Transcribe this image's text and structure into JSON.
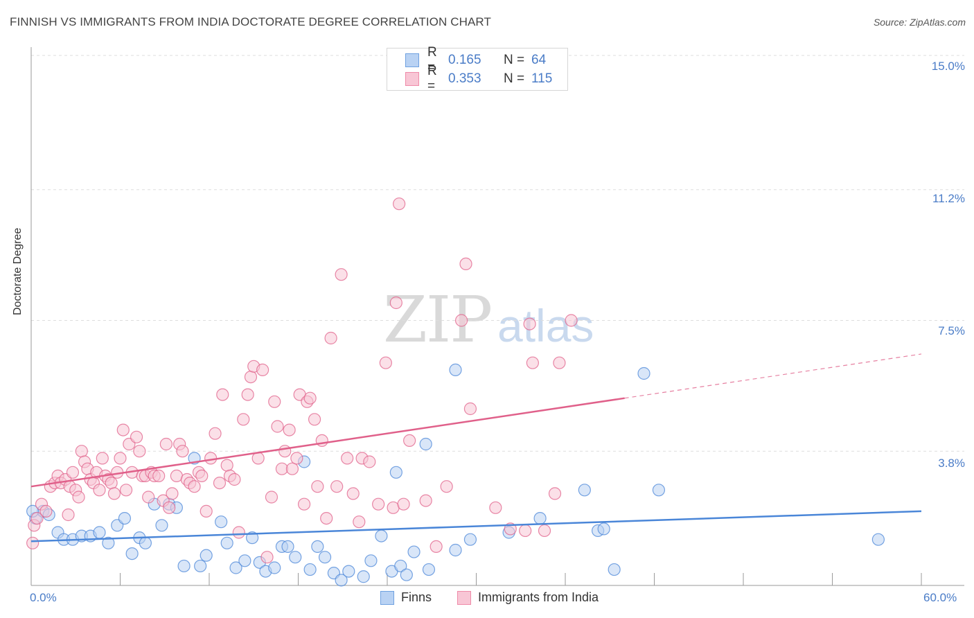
{
  "header": {
    "title": "FINNISH VS IMMIGRANTS FROM INDIA DOCTORATE DEGREE CORRELATION CHART",
    "source": "Source: ZipAtlas.com"
  },
  "watermark": {
    "zip": "ZIP",
    "atlas": "atlas"
  },
  "legend": {
    "rows": [
      {
        "r_label": "R =",
        "r_value": "0.165",
        "n_label": "N =",
        "n_value": "64",
        "color": "#6fa1e0",
        "fill": "#b9d2f3"
      },
      {
        "r_label": "R =",
        "r_value": "0.353",
        "n_label": "N =",
        "n_value": "115",
        "color": "#ef8aa8",
        "fill": "#f8c6d5"
      }
    ]
  },
  "bottom_legend": [
    {
      "label": "Finns",
      "color": "#6fa1e0",
      "fill": "#b9d2f3"
    },
    {
      "label": "Immigrants from India",
      "color": "#ef8aa8",
      "fill": "#f8c6d5"
    }
  ],
  "chart_data": {
    "type": "scatter",
    "ylabel": "Doctorate Degree",
    "xlabel": "",
    "xlim": [
      0,
      60
    ],
    "ylim": [
      0,
      15
    ],
    "x_tick_labels": [
      "0.0%",
      "60.0%"
    ],
    "y_ticks": [
      3.8,
      7.5,
      11.2,
      15.0
    ],
    "y_tick_labels": [
      "3.8%",
      "7.5%",
      "11.2%",
      "15.0%"
    ],
    "grid": true,
    "legend_position": "top-center",
    "series": [
      {
        "name": "Finns",
        "color": "#4a86d8",
        "fill": "#b9d2f3",
        "trend": {
          "x0": 0,
          "y0": 1.25,
          "x1": 60,
          "y1": 2.1,
          "dashed_from": null
        },
        "points": [
          [
            0.3,
            1.9
          ],
          [
            0.8,
            2.1
          ],
          [
            1.2,
            2.0
          ],
          [
            1.8,
            1.5
          ],
          [
            2.2,
            1.3
          ],
          [
            2.8,
            1.3
          ],
          [
            3.4,
            1.4
          ],
          [
            4.0,
            1.4
          ],
          [
            4.6,
            1.5
          ],
          [
            5.2,
            1.2
          ],
          [
            5.8,
            1.7
          ],
          [
            6.3,
            1.9
          ],
          [
            6.8,
            0.9
          ],
          [
            7.3,
            1.35
          ],
          [
            7.7,
            1.2
          ],
          [
            8.3,
            2.3
          ],
          [
            8.8,
            1.7
          ],
          [
            9.3,
            2.3
          ],
          [
            9.8,
            2.2
          ],
          [
            10.3,
            0.55
          ],
          [
            11.4,
            0.55
          ],
          [
            11.8,
            0.85
          ],
          [
            11.0,
            3.6
          ],
          [
            12.8,
            1.8
          ],
          [
            13.2,
            1.2
          ],
          [
            13.8,
            0.5
          ],
          [
            14.4,
            0.7
          ],
          [
            14.9,
            1.35
          ],
          [
            15.4,
            0.65
          ],
          [
            15.8,
            0.4
          ],
          [
            16.4,
            0.5
          ],
          [
            16.9,
            1.1
          ],
          [
            17.3,
            1.1
          ],
          [
            17.8,
            0.8
          ],
          [
            18.4,
            3.5
          ],
          [
            18.8,
            0.45
          ],
          [
            19.3,
            1.1
          ],
          [
            19.8,
            0.8
          ],
          [
            20.4,
            0.35
          ],
          [
            20.9,
            0.15
          ],
          [
            21.4,
            0.4
          ],
          [
            22.4,
            0.25
          ],
          [
            22.9,
            0.7
          ],
          [
            23.6,
            1.4
          ],
          [
            24.3,
            0.4
          ],
          [
            24.6,
            3.2
          ],
          [
            24.9,
            0.55
          ],
          [
            25.3,
            0.3
          ],
          [
            25.8,
            0.95
          ],
          [
            26.8,
            0.45
          ],
          [
            26.6,
            4.0
          ],
          [
            28.6,
            1.0
          ],
          [
            29.6,
            1.3
          ],
          [
            28.6,
            6.1
          ],
          [
            32.2,
            1.5
          ],
          [
            34.3,
            1.9
          ],
          [
            37.3,
            2.7
          ],
          [
            38.2,
            1.55
          ],
          [
            38.6,
            1.6
          ],
          [
            39.3,
            0.45
          ],
          [
            41.3,
            6.0
          ],
          [
            42.3,
            2.7
          ],
          [
            57.1,
            1.3
          ],
          [
            0.1,
            2.1
          ]
        ]
      },
      {
        "name": "Immigrants from India",
        "color": "#e0608a",
        "fill": "#f8c6d5",
        "trend": {
          "x0": 0,
          "y0": 2.8,
          "x1": 40,
          "y1": 5.3,
          "dashed_from": 40,
          "x2": 60,
          "y2": 6.55
        },
        "points": [
          [
            0.1,
            1.2
          ],
          [
            0.2,
            1.7
          ],
          [
            0.4,
            1.9
          ],
          [
            0.7,
            2.3
          ],
          [
            1.0,
            2.1
          ],
          [
            1.3,
            2.8
          ],
          [
            1.6,
            2.9
          ],
          [
            1.8,
            3.1
          ],
          [
            2.0,
            2.9
          ],
          [
            2.3,
            3.0
          ],
          [
            2.6,
            2.8
          ],
          [
            2.8,
            3.2
          ],
          [
            3.0,
            2.7
          ],
          [
            3.2,
            2.5
          ],
          [
            3.4,
            3.8
          ],
          [
            3.6,
            3.5
          ],
          [
            3.8,
            3.3
          ],
          [
            4.0,
            3.0
          ],
          [
            4.2,
            2.9
          ],
          [
            4.4,
            3.2
          ],
          [
            4.6,
            2.7
          ],
          [
            4.8,
            3.6
          ],
          [
            5.0,
            3.1
          ],
          [
            5.2,
            3.0
          ],
          [
            5.4,
            2.9
          ],
          [
            5.6,
            2.6
          ],
          [
            5.8,
            3.2
          ],
          [
            6.0,
            3.6
          ],
          [
            6.2,
            4.4
          ],
          [
            6.4,
            2.7
          ],
          [
            6.6,
            4.0
          ],
          [
            6.8,
            3.2
          ],
          [
            7.1,
            4.2
          ],
          [
            7.3,
            3.8
          ],
          [
            7.5,
            3.1
          ],
          [
            7.7,
            3.1
          ],
          [
            7.9,
            2.5
          ],
          [
            8.1,
            3.2
          ],
          [
            8.3,
            3.1
          ],
          [
            8.6,
            3.1
          ],
          [
            8.9,
            2.4
          ],
          [
            9.1,
            4.0
          ],
          [
            9.3,
            2.2
          ],
          [
            9.5,
            2.6
          ],
          [
            9.8,
            3.1
          ],
          [
            10.0,
            4.0
          ],
          [
            10.2,
            3.8
          ],
          [
            10.5,
            3.0
          ],
          [
            10.7,
            2.9
          ],
          [
            11.0,
            2.8
          ],
          [
            11.3,
            3.2
          ],
          [
            11.5,
            3.1
          ],
          [
            11.8,
            2.1
          ],
          [
            12.1,
            3.6
          ],
          [
            12.4,
            4.3
          ],
          [
            12.7,
            2.9
          ],
          [
            12.9,
            5.4
          ],
          [
            13.2,
            3.4
          ],
          [
            13.4,
            3.1
          ],
          [
            13.7,
            3.0
          ],
          [
            14.0,
            1.5
          ],
          [
            14.3,
            4.7
          ],
          [
            14.6,
            5.4
          ],
          [
            14.8,
            5.9
          ],
          [
            15.0,
            6.2
          ],
          [
            15.3,
            3.6
          ],
          [
            15.6,
            6.1
          ],
          [
            15.9,
            0.8
          ],
          [
            16.2,
            2.5
          ],
          [
            16.4,
            5.2
          ],
          [
            16.6,
            4.5
          ],
          [
            16.9,
            3.3
          ],
          [
            17.1,
            3.8
          ],
          [
            17.4,
            4.4
          ],
          [
            17.6,
            3.3
          ],
          [
            17.9,
            3.6
          ],
          [
            18.1,
            5.4
          ],
          [
            18.4,
            2.3
          ],
          [
            18.6,
            5.2
          ],
          [
            18.8,
            5.3
          ],
          [
            19.1,
            4.7
          ],
          [
            19.3,
            2.8
          ],
          [
            19.6,
            4.1
          ],
          [
            19.9,
            1.9
          ],
          [
            20.2,
            7.0
          ],
          [
            20.6,
            2.8
          ],
          [
            20.9,
            8.8
          ],
          [
            21.3,
            3.6
          ],
          [
            21.7,
            2.6
          ],
          [
            22.1,
            1.8
          ],
          [
            22.3,
            3.6
          ],
          [
            22.8,
            3.5
          ],
          [
            23.4,
            2.3
          ],
          [
            23.9,
            6.3
          ],
          [
            24.4,
            2.2
          ],
          [
            24.6,
            8.0
          ],
          [
            24.8,
            10.8
          ],
          [
            25.1,
            2.3
          ],
          [
            25.5,
            4.1
          ],
          [
            26.6,
            2.4
          ],
          [
            27.3,
            1.1
          ],
          [
            28.0,
            2.8
          ],
          [
            29.0,
            7.5
          ],
          [
            29.3,
            9.1
          ],
          [
            29.6,
            5.0
          ],
          [
            31.3,
            2.2
          ],
          [
            32.3,
            1.6
          ],
          [
            33.3,
            1.55
          ],
          [
            33.6,
            7.4
          ],
          [
            33.8,
            6.3
          ],
          [
            34.6,
            1.55
          ],
          [
            35.3,
            2.6
          ],
          [
            35.6,
            6.3
          ],
          [
            36.4,
            7.5
          ],
          [
            2.5,
            2.0
          ]
        ]
      }
    ]
  }
}
